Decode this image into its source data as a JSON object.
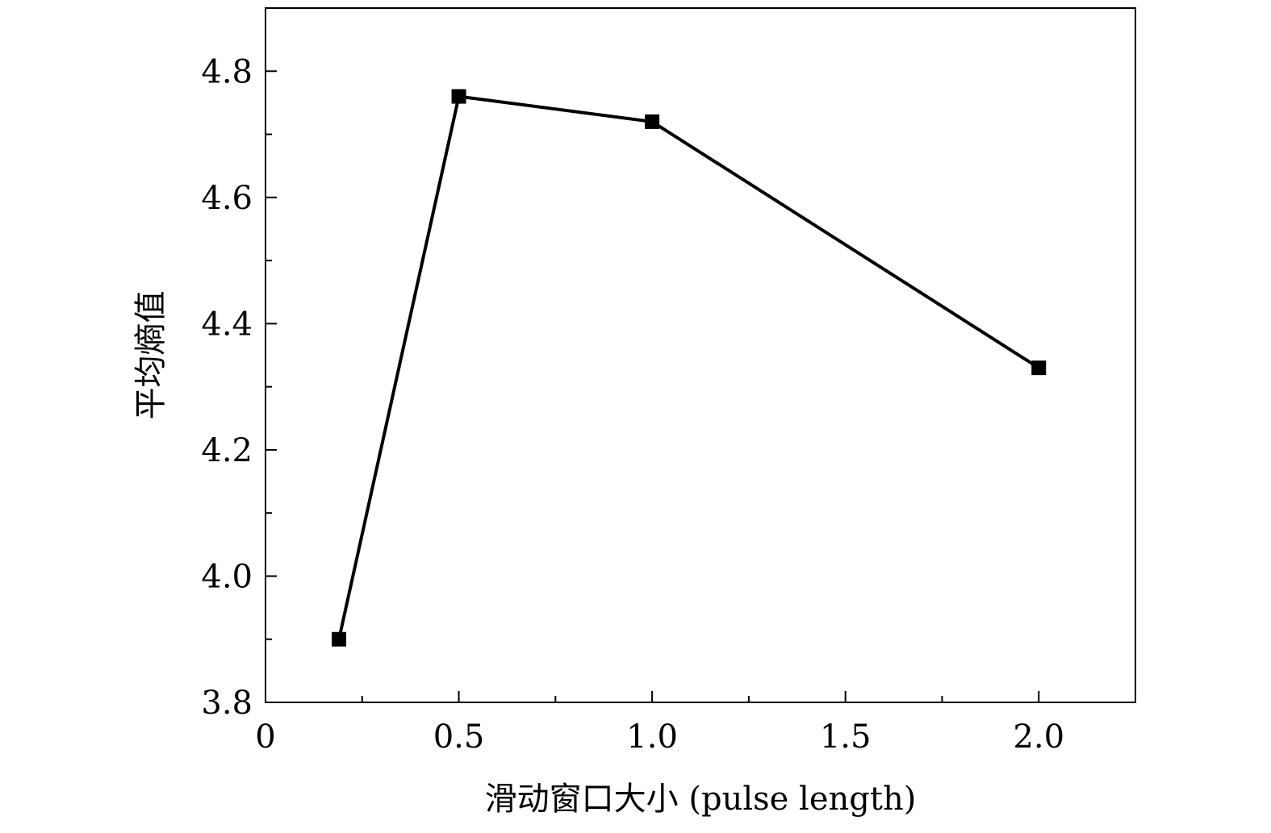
{
  "chart_data": {
    "type": "line",
    "title": "",
    "xlabel": "滑动窗口大小 (pulse length)",
    "ylabel": "平均熵值",
    "xlim": [
      0,
      2.25
    ],
    "ylim": [
      3.8,
      4.9
    ],
    "x_ticks": [
      0,
      0.5,
      1.0,
      1.5,
      2.0
    ],
    "x_tick_labels": [
      "0",
      "0.5",
      "1.0",
      "1.5",
      "2.0"
    ],
    "y_ticks": [
      3.8,
      4.0,
      4.2,
      4.4,
      4.6,
      4.8
    ],
    "y_tick_labels": [
      "3.8",
      "4.0",
      "4.2",
      "4.4",
      "4.6",
      "4.8"
    ],
    "grid": false,
    "legend": "none",
    "series": [
      {
        "marker": "square",
        "color": "#000000",
        "x": [
          0.19,
          0.5,
          1.0,
          2.0
        ],
        "y": [
          3.9,
          4.76,
          4.72,
          4.33
        ]
      }
    ]
  }
}
